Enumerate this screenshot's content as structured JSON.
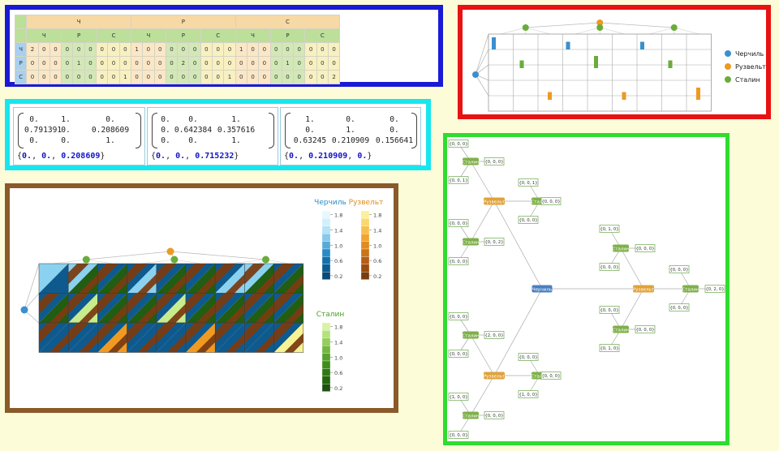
{
  "players": [
    "Черчиль",
    "Рузвельт",
    "Сталин"
  ],
  "player_short": [
    "Ч",
    "Р",
    "С"
  ],
  "colors": {
    "ch": "#3a8fcf",
    "ru": "#ec9a22",
    "st": "#6aac3a"
  },
  "table": {
    "rows": [
      {
        "label": "Ч",
        "values": [
          2,
          0,
          0,
          0,
          0,
          0,
          0,
          0,
          0,
          1,
          0,
          0,
          0,
          0,
          0,
          0,
          0,
          0,
          1,
          0,
          0,
          0,
          0,
          0,
          0,
          0,
          0
        ]
      },
      {
        "label": "Р",
        "values": [
          0,
          0,
          0,
          0,
          1,
          0,
          0,
          0,
          0,
          0,
          0,
          0,
          0,
          2,
          0,
          0,
          0,
          0,
          0,
          0,
          0,
          0,
          1,
          0,
          0,
          0,
          0
        ]
      },
      {
        "label": "С",
        "values": [
          0,
          0,
          0,
          0,
          0,
          0,
          0,
          0,
          1,
          0,
          0,
          0,
          0,
          0,
          0,
          0,
          0,
          1,
          0,
          0,
          0,
          0,
          0,
          0,
          0,
          0,
          2
        ]
      }
    ]
  },
  "matrices": [
    {
      "rows": [
        [
          "0.",
          "1.",
          "0."
        ],
        [
          "0.791391",
          "0.",
          "0.208609"
        ],
        [
          "0.",
          "0.",
          "1."
        ]
      ],
      "vector": [
        "0.",
        "0.",
        "0.208609"
      ]
    },
    {
      "rows": [
        [
          "0.",
          "0.",
          "1."
        ],
        [
          "0.",
          "0.642384",
          "0.357616"
        ],
        [
          "0.",
          "0.",
          "1."
        ]
      ],
      "vector": [
        "0.",
        "0.",
        "0.715232"
      ]
    },
    {
      "rows": [
        [
          "1.",
          "0.",
          "0."
        ],
        [
          "0.",
          "1.",
          "0."
        ],
        [
          "0.63245",
          "0.210909",
          "0.156641"
        ]
      ],
      "vector": [
        "0.",
        "0.210909",
        "0."
      ]
    }
  ],
  "tree_chart": {
    "bars": [
      {
        "row": 0,
        "col": 0,
        "player": 0,
        "height": 1.0
      },
      {
        "row": 0,
        "col": 3,
        "player": 0,
        "height": 0.5
      },
      {
        "row": 0,
        "col": 6,
        "player": 0,
        "height": 0.5
      },
      {
        "row": 1,
        "col": 1,
        "player": 2,
        "height": 0.5
      },
      {
        "row": 1,
        "col": 4,
        "player": 2,
        "height": 1.0
      },
      {
        "row": 1,
        "col": 7,
        "player": 2,
        "height": 0.5
      },
      {
        "row": 2,
        "col": 2,
        "player": 1,
        "height": 0.5
      },
      {
        "row": 2,
        "col": 5,
        "player": 1,
        "height": 0.5
      },
      {
        "row": 2,
        "col": 8,
        "player": 1,
        "height": 1.0
      }
    ]
  },
  "legend_top": [
    "Черчиль",
    "Рузвельт",
    "Сталин"
  ],
  "heat": {
    "cells": [
      [
        [
          0.0,
          1.8
        ],
        [
          1.8,
          0.0
        ],
        [
          0.0,
          0.2
        ],
        [
          0.0,
          1.8
        ],
        [
          0.0,
          0.2
        ],
        [
          0.0,
          0.2
        ],
        [
          0.0,
          1.8
        ],
        [
          1.8,
          0.2
        ],
        [
          0.0,
          0.2
        ]
      ],
      [
        [
          0.2,
          0.2
        ],
        [
          0.0,
          1.8
        ],
        [
          0.2,
          0.2
        ],
        [
          0.0,
          0.2
        ],
        [
          0.2,
          1.8
        ],
        [
          0.0,
          0.2
        ],
        [
          0.2,
          0.2
        ],
        [
          0.0,
          1.6
        ],
        [
          0.2,
          0.2
        ]
      ],
      [
        [
          0.2,
          0.2
        ],
        [
          0.2,
          0.2
        ],
        [
          0.2,
          1.4
        ],
        [
          0.2,
          0.2
        ],
        [
          0.2,
          0.2
        ],
        [
          0.2,
          1.4
        ],
        [
          0.2,
          0.2
        ],
        [
          0.2,
          0.2
        ],
        [
          0.2,
          1.8
        ]
      ]
    ],
    "legends": [
      {
        "title": "Черчиль",
        "ticks": [
          "1.8",
          "1.6",
          "1.4",
          "1.2",
          "1.0",
          "0.8",
          "0.6",
          "0.4",
          "0.2"
        ]
      },
      {
        "title": "Рузвельт",
        "ticks": [
          "1.8",
          "1.6",
          "1.4",
          "1.2",
          "1.0",
          "0.8",
          "0.6",
          "0.4",
          "0.2"
        ]
      },
      {
        "title": "Сталин",
        "ticks": [
          "1.8",
          "1.6",
          "1.4",
          "1.2",
          "1.0",
          "0.8",
          "0.6",
          "0.4",
          "0.2"
        ]
      }
    ],
    "tick_labels_shown": [
      "1.8",
      "1.4",
      "1.0",
      "0.6",
      "0.2"
    ]
  },
  "graph": {
    "nodes": [
      {
        "id": "ch",
        "label": "Черчиль",
        "type": "ch"
      },
      {
        "id": "r1",
        "label": "Рузвельт",
        "type": "ru"
      },
      {
        "id": "r2",
        "label": "Рузвельт",
        "type": "ru"
      },
      {
        "id": "r3",
        "label": "Рузвельт",
        "type": "ru"
      },
      {
        "id": "s1",
        "label": "Сталин",
        "type": "st"
      },
      {
        "id": "s2",
        "label": "Сталин",
        "type": "st"
      },
      {
        "id": "s3",
        "label": "Сталин",
        "type": "st"
      },
      {
        "id": "s4",
        "label": "Сталин",
        "type": "st"
      },
      {
        "id": "s5",
        "label": "Сталин",
        "type": "st"
      },
      {
        "id": "s6",
        "label": "Сталин",
        "type": "st"
      },
      {
        "id": "s7",
        "label": "Сталин",
        "type": "st"
      },
      {
        "id": "s8",
        "label": "Сталин",
        "type": "st"
      },
      {
        "id": "s9",
        "label": "Сталин",
        "type": "st"
      }
    ],
    "tuples": [
      {
        "id": "t1",
        "label": "{0, 0, 0}"
      },
      {
        "id": "t2",
        "label": "{0, 0, 0}"
      },
      {
        "id": "t3",
        "label": "{0, 0, 1}"
      },
      {
        "id": "t4",
        "label": "{0, 0, 1}"
      },
      {
        "id": "t5",
        "label": "{0, 0, 0}"
      },
      {
        "id": "t6",
        "label": "{0, 0, 0}"
      },
      {
        "id": "t7",
        "label": "{0, 0, 0}"
      },
      {
        "id": "t8",
        "label": "{0, 0, 2}"
      },
      {
        "id": "t9",
        "label": "{0, 0, 0}"
      },
      {
        "id": "t10",
        "label": "{0, 1, 0}"
      },
      {
        "id": "t11",
        "label": "{0, 0, 0}"
      },
      {
        "id": "t12",
        "label": "{0, 0, 0}"
      },
      {
        "id": "t13",
        "label": "{0, 0, 0}"
      },
      {
        "id": "t14",
        "label": "{0, 2, 0}"
      },
      {
        "id": "t15",
        "label": "{0, 0, 0}"
      },
      {
        "id": "t16",
        "label": "{0, 0, 0}"
      },
      {
        "id": "t17",
        "label": "{0, 0, 0}"
      },
      {
        "id": "t18",
        "label": "{0, 1, 0}"
      },
      {
        "id": "t19",
        "label": "{0, 0, 0}"
      },
      {
        "id": "t20",
        "label": "{2, 0, 0}"
      },
      {
        "id": "t21",
        "label": "{0, 0, 0}"
      },
      {
        "id": "t22",
        "label": "{0, 0, 0}"
      },
      {
        "id": "t23",
        "label": "{0, 0, 0}"
      },
      {
        "id": "t24",
        "label": "{1, 0, 0}"
      },
      {
        "id": "t25",
        "label": "{1, 0, 0}"
      },
      {
        "id": "t26",
        "label": "{0, 0, 0}"
      },
      {
        "id": "t27",
        "label": "{0, 0, 0}"
      }
    ]
  }
}
